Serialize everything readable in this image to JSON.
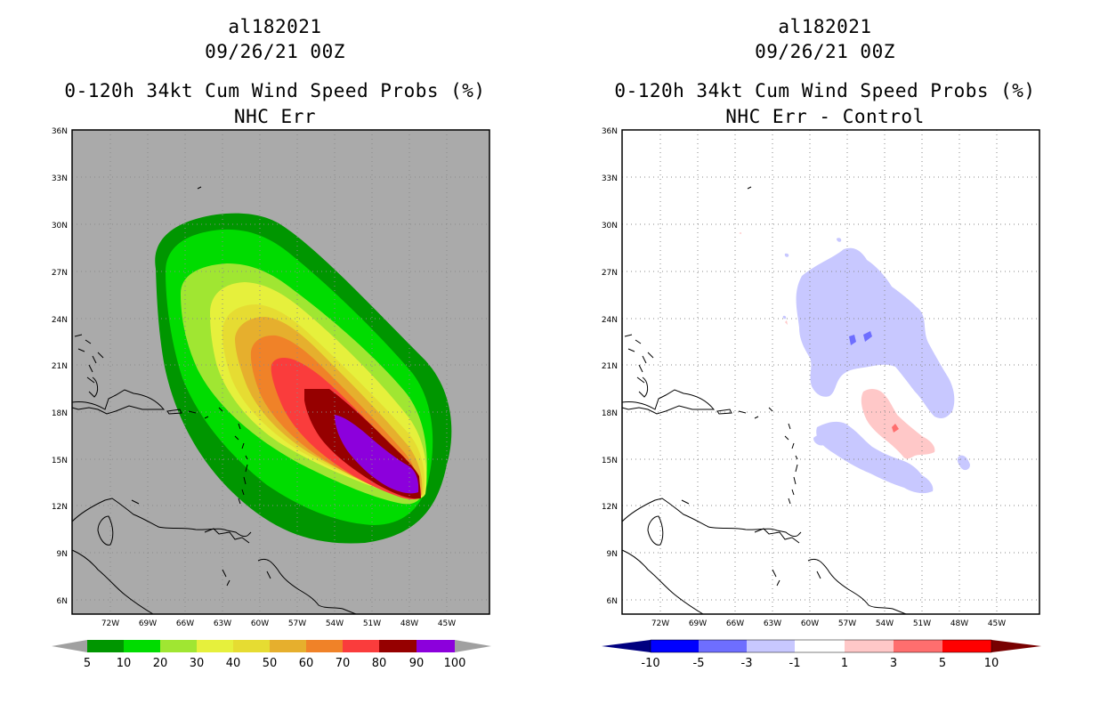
{
  "left": {
    "storm_id": "al182021",
    "datetime": "09/26/21 00Z",
    "product": "0-120h 34kt Cum Wind Speed Probs (%)",
    "subtitle": "NHC Err",
    "colorbar_labels": [
      "5",
      "10",
      "20",
      "30",
      "40",
      "50",
      "60",
      "70",
      "80",
      "90",
      "100"
    ],
    "colorbar_colors": [
      "#009600",
      "#00dc00",
      "#a0e632",
      "#e6f03c",
      "#e6dc32",
      "#e6af2d",
      "#f08228",
      "#fa3c3c",
      "#960000",
      "#8c00dc"
    ]
  },
  "right": {
    "storm_id": "al182021",
    "datetime": "09/26/21 00Z",
    "product": "0-120h 34kt Cum Wind Speed Probs (%)",
    "subtitle": "NHC Err - Control",
    "colorbar_labels": [
      "-10",
      "-5",
      "-3",
      "-1",
      "1",
      "3",
      "5",
      "10"
    ],
    "colorbar_colors": [
      "#0000ff",
      "#6e6eff",
      "#c8c8ff",
      "#ffffff",
      "#ffc8c8",
      "#ff6e6e",
      "#ff0000"
    ]
  },
  "map": {
    "lon_labels": [
      "72W",
      "69W",
      "66W",
      "63W",
      "60W",
      "57W",
      "54W",
      "51W",
      "48W",
      "45W"
    ],
    "lat_labels": [
      "36N",
      "33N",
      "30N",
      "27N",
      "24N",
      "21N",
      "18N",
      "15N",
      "12N",
      "9N",
      "6N"
    ]
  },
  "colors": {
    "land_gray": "#aaaaaa",
    "extend_gray": "#a0a0a0",
    "low_extend": "#000080",
    "high_extend": "#780000"
  }
}
